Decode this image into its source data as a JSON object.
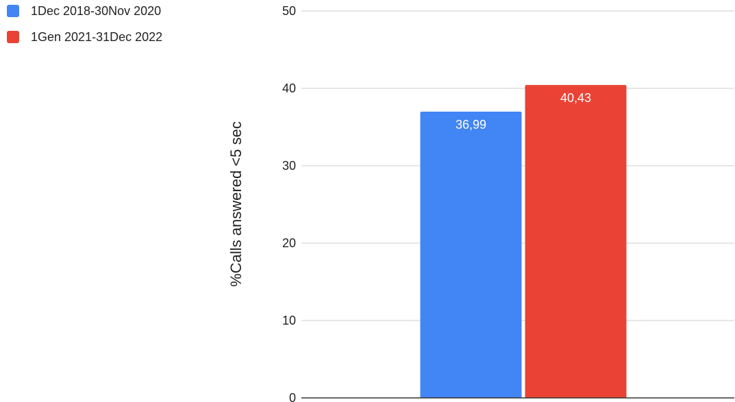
{
  "chart_data": {
    "type": "bar",
    "categories": [
      ""
    ],
    "series": [
      {
        "name": "1Dec 2018-30Nov 2020",
        "values": [
          36.99
        ],
        "label": "36,99",
        "color": "#4285f4"
      },
      {
        "name": "1Gen 2021-31Dec 2022",
        "values": [
          40.43
        ],
        "label": "40,43",
        "color": "#ea4335"
      }
    ],
    "title": "",
    "xlabel": "",
    "ylabel": "%Calls answered <5 sec",
    "ylim": [
      0,
      50
    ],
    "yticks": [
      "0",
      "10",
      "20",
      "30",
      "40",
      "50"
    ],
    "ytick_values": [
      0,
      10,
      20,
      30,
      40,
      50
    ],
    "grid": true,
    "legend_position": "top-left"
  }
}
